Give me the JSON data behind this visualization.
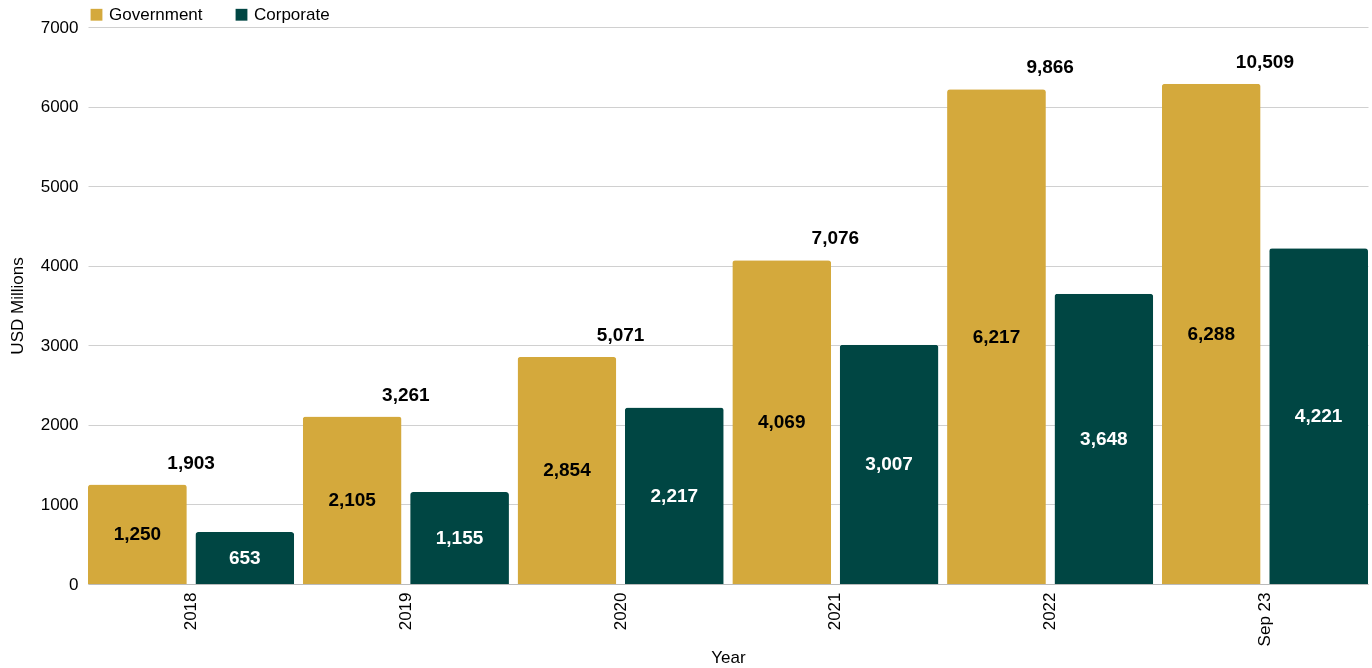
{
  "chart_data": {
    "type": "bar",
    "xlabel": "Year",
    "ylabel": "USD Millions",
    "categories": [
      "2018",
      "2019",
      "2020",
      "2021",
      "2022",
      "Sep 23"
    ],
    "series": [
      {
        "name": "Government",
        "color": "#d4a93c",
        "values": [
          1250,
          2105,
          2854,
          4069,
          6217,
          6288
        ],
        "value_labels": [
          "1,250",
          "2,105",
          "2,854",
          "4,069",
          "6,217",
          "6,288"
        ]
      },
      {
        "name": "Corporate",
        "color": "#004643",
        "values": [
          653,
          1155,
          2217,
          3007,
          3648,
          4221
        ],
        "value_labels": [
          "653",
          "1,155",
          "2,217",
          "3,007",
          "3,648",
          "4,221"
        ]
      }
    ],
    "totals": [
      "1,903",
      "3,261",
      "5,071",
      "7,076",
      "9,866",
      "10,509"
    ],
    "ylim": [
      0,
      7000
    ],
    "yticks": [
      0,
      1000,
      2000,
      3000,
      4000,
      5000,
      6000,
      7000
    ],
    "grid": "y",
    "legend": "top"
  }
}
